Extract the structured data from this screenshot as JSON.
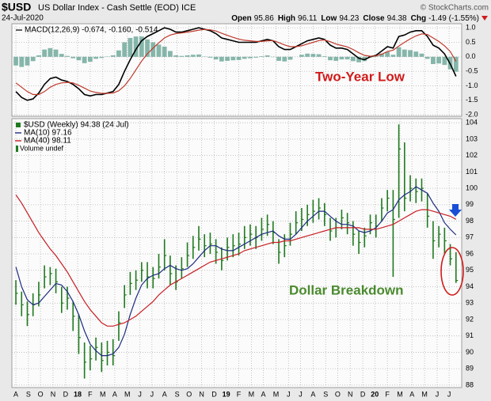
{
  "header": {
    "symbol": "$USD",
    "name": "US Dollar Index - Cash Settle (EOD) ICE",
    "source": "© StockCharts.com",
    "date": "24-Jul-2020",
    "quote": [
      [
        "Open",
        "95.86"
      ],
      [
        "High",
        "96.11"
      ],
      [
        "Low",
        "94.23"
      ],
      [
        "Close",
        "94.38"
      ],
      [
        "Chg",
        "-1.49 (-1.55%)"
      ]
    ]
  },
  "chart_data": [
    {
      "type": "macd",
      "legend": "MACD(12,26,9) -0.674, -0.160, -0.514",
      "annotation": "Two-Year Low",
      "annotation_color": "#d11a1a",
      "xlim": [
        -0.7,
        78
      ],
      "ylim": [
        -2.05,
        1.14
      ],
      "yticks": [
        {
          "value": 1,
          "label": "1.0"
        },
        0.5,
        {
          "value": 0,
          "label": "0.0"
        },
        -0.5,
        {
          "value": -1,
          "label": "-1.0"
        },
        -1.5,
        {
          "value": -2,
          "label": "-2.0"
        }
      ],
      "grid": true,
      "series": [
        {
          "type": "bar",
          "color": "#5f9f8f",
          "values": [
            -0.3,
            -0.35,
            -0.3,
            -0.15,
            0.05,
            0.25,
            0.3,
            0.25,
            0.1,
            0.03,
            -0.05,
            -0.12,
            -0.22,
            -0.17,
            -0.07,
            -0.04,
            0.01,
            0.05,
            0.22,
            0.5,
            0.65,
            0.7,
            0.7,
            0.6,
            0.5,
            0.42,
            0.35,
            0.2,
            0.05,
            0.03,
            0.05,
            0.07,
            0.08,
            0.01,
            -0.03,
            -0.09,
            -0.16,
            -0.14,
            -0.12,
            -0.11,
            -0.07,
            -0.05,
            -0.03,
            0.02,
            0.05,
            -0.01,
            -0.14,
            -0.16,
            -0.1,
            0.0,
            0.07,
            0.11,
            0.1,
            0.09,
            0.02,
            -0.12,
            -0.14,
            -0.09,
            -0.09,
            -0.15,
            -0.19,
            -0.15,
            -0.02,
            0.02,
            0.11,
            0.17,
            0.07,
            0.33,
            0.25,
            0.23,
            0.18,
            0.11,
            -0.07,
            -0.25,
            -0.23,
            -0.28,
            -0.43,
            -0.514
          ]
        },
        {
          "type": "line",
          "color": "#000000",
          "values": [
            -1.2,
            -1.4,
            -1.5,
            -1.45,
            -1.25,
            -0.95,
            -0.75,
            -0.7,
            -0.8,
            -0.85,
            -0.95,
            -1.1,
            -1.3,
            -1.35,
            -1.3,
            -1.3,
            -1.25,
            -1.2,
            -0.95,
            -0.5,
            -0.1,
            0.25,
            0.55,
            0.7,
            0.8,
            0.9,
            1.0,
            0.95,
            0.85,
            0.85,
            0.9,
            0.95,
            1.0,
            0.95,
            0.9,
            0.8,
            0.65,
            0.6,
            0.55,
            0.5,
            0.5,
            0.5,
            0.5,
            0.55,
            0.6,
            0.55,
            0.35,
            0.25,
            0.25,
            0.35,
            0.45,
            0.55,
            0.6,
            0.65,
            0.6,
            0.4,
            0.3,
            0.3,
            0.25,
            0.1,
            -0.05,
            -0.1,
            0.0,
            0.05,
            0.2,
            0.35,
            0.3,
            0.7,
            0.75,
            0.85,
            0.9,
            0.9,
            0.7,
            0.4,
            0.3,
            0.1,
            -0.25,
            -0.674
          ]
        },
        {
          "type": "line",
          "color": "#c0392b",
          "values": [
            -0.9,
            -1.05,
            -1.2,
            -1.3,
            -1.3,
            -1.2,
            -1.05,
            -0.95,
            -0.9,
            -0.88,
            -0.9,
            -0.98,
            -1.08,
            -1.18,
            -1.23,
            -1.26,
            -1.26,
            -1.25,
            -1.17,
            -1.0,
            -0.75,
            -0.45,
            -0.15,
            0.1,
            0.3,
            0.48,
            0.65,
            0.75,
            0.8,
            0.82,
            0.85,
            0.88,
            0.92,
            0.94,
            0.93,
            0.89,
            0.81,
            0.74,
            0.67,
            0.61,
            0.57,
            0.55,
            0.53,
            0.53,
            0.55,
            0.56,
            0.49,
            0.41,
            0.35,
            0.35,
            0.38,
            0.44,
            0.5,
            0.56,
            0.58,
            0.52,
            0.44,
            0.39,
            0.34,
            0.25,
            0.14,
            0.05,
            0.02,
            0.03,
            0.09,
            0.18,
            0.23,
            0.37,
            0.5,
            0.62,
            0.72,
            0.79,
            0.77,
            0.65,
            0.53,
            0.38,
            0.18,
            -0.16
          ]
        }
      ]
    },
    {
      "type": "ohlc",
      "annotation": "Dollar Breakdown",
      "annotation_color": "#4a8a2e",
      "legend_extra": "Volume undef",
      "xlim": [
        -0.7,
        78
      ],
      "ylim": [
        87.85,
        104.25
      ],
      "yticks": [
        88,
        89,
        90,
        91,
        92,
        93,
        94,
        95,
        96,
        97,
        98,
        99,
        100,
        101,
        102,
        103,
        104
      ],
      "xticks": [
        {
          "value": 0,
          "label": "A"
        },
        {
          "value": 2.2,
          "label": "S"
        },
        {
          "value": 4.3,
          "label": "O"
        },
        {
          "value": 6.5,
          "label": "N"
        },
        {
          "value": 8.7,
          "label": "D"
        },
        {
          "value": 10.8,
          "label": "18"
        },
        {
          "value": 13,
          "label": "F"
        },
        {
          "value": 15.2,
          "label": "M"
        },
        {
          "value": 17.3,
          "label": "A"
        },
        {
          "value": 19.5,
          "label": "M"
        },
        {
          "value": 21.7,
          "label": "J"
        },
        {
          "value": 23.8,
          "label": "J"
        },
        {
          "value": 26,
          "label": "A"
        },
        {
          "value": 28.2,
          "label": "S"
        },
        {
          "value": 30.3,
          "label": "O"
        },
        {
          "value": 32.5,
          "label": "N"
        },
        {
          "value": 34.7,
          "label": "D"
        },
        {
          "value": 36.8,
          "label": "19"
        },
        {
          "value": 39,
          "label": "F"
        },
        {
          "value": 41.2,
          "label": "M"
        },
        {
          "value": 43.3,
          "label": "A"
        },
        {
          "value": 45.5,
          "label": "M"
        },
        {
          "value": 47.7,
          "label": "J"
        },
        {
          "value": 49.8,
          "label": "J"
        },
        {
          "value": 52,
          "label": "A"
        },
        {
          "value": 54.2,
          "label": "S"
        },
        {
          "value": 56.3,
          "label": "O"
        },
        {
          "value": 58.5,
          "label": "N"
        },
        {
          "value": 60.7,
          "label": "D"
        },
        {
          "value": 62.8,
          "label": "20"
        },
        {
          "value": 65,
          "label": "F"
        },
        {
          "value": 67.2,
          "label": "M"
        },
        {
          "value": 69.3,
          "label": "A"
        },
        {
          "value": 71.5,
          "label": "M"
        },
        {
          "value": 73.7,
          "label": "J"
        },
        {
          "value": 75.8,
          "label": "J"
        }
      ],
      "grid": true,
      "series": [
        {
          "type": "ohlc",
          "name": "$USD (Weekly) 94.38 (24 Jul)",
          "color": "#1f7a1f",
          "high": [
            94.4,
            93.7,
            93.1,
            93.6,
            94.3,
            95.3,
            95.2,
            95.1,
            94.0,
            94.0,
            93.1,
            92.3,
            90.6,
            90.4,
            90.9,
            90.6,
            90.7,
            90.8,
            92.5,
            94.1,
            94.9,
            95.0,
            95.5,
            95.5,
            95.2,
            96.0,
            96.9,
            95.9,
            95.3,
            95.8,
            96.7,
            97.1,
            97.7,
            97.2,
            97.3,
            96.9,
            96.4,
            97.0,
            97.2,
            97.3,
            97.7,
            97.8,
            97.7,
            98.2,
            98.4,
            98.0,
            96.9,
            97.2,
            97.9,
            98.6,
            98.8,
            99.0,
            99.3,
            99.4,
            99.1,
            98.2,
            98.2,
            98.7,
            98.5,
            98.0,
            97.4,
            97.6,
            98.4,
            98.4,
            99.4,
            99.9,
            99.9,
            103.9,
            102.8,
            100.8,
            100.6,
            100.6,
            99.7,
            98.0,
            97.7,
            97.6,
            96.6,
            96.11
          ],
          "low": [
            92.9,
            92.2,
            91.6,
            92.2,
            92.8,
            93.9,
            94.1,
            93.6,
            92.4,
            92.6,
            91.3,
            89.9,
            88.4,
            88.9,
            89.5,
            88.8,
            89.2,
            89.2,
            90.7,
            92.7,
            93.5,
            93.8,
            94.3,
            93.9,
            93.9,
            94.5,
            95.0,
            94.1,
            93.8,
            94.5,
            95.2,
            95.7,
            96.2,
            95.8,
            96.0,
            95.4,
            95.0,
            95.6,
            95.8,
            95.9,
            96.3,
            96.5,
            96.3,
            96.8,
            97.1,
            96.6,
            95.4,
            95.8,
            96.5,
            97.2,
            97.4,
            97.7,
            97.9,
            98.1,
            97.7,
            96.8,
            97.0,
            97.5,
            97.2,
            96.5,
            96.0,
            96.4,
            97.2,
            97.0,
            98.0,
            98.6,
            94.6,
            98.2,
            98.6,
            99.2,
            99.1,
            99.2,
            97.6,
            95.7,
            96.4,
            96.0,
            95.3,
            94.23
          ],
          "close": [
            93.6,
            92.9,
            92.3,
            92.9,
            93.5,
            94.6,
            94.8,
            94.3,
            93.0,
            93.3,
            92.2,
            90.9,
            89.4,
            89.6,
            90.3,
            89.5,
            90.0,
            89.8,
            91.8,
            93.5,
            94.2,
            94.4,
            95.0,
            94.6,
            94.5,
            95.2,
            95.9,
            94.8,
            94.3,
            95.1,
            95.9,
            96.4,
            96.9,
            96.5,
            96.6,
            96.1,
            95.6,
            96.4,
            96.5,
            96.6,
            97.0,
            97.2,
            97.0,
            97.5,
            97.8,
            97.3,
            96.1,
            96.5,
            97.2,
            97.9,
            98.1,
            98.4,
            98.6,
            98.8,
            98.4,
            97.4,
            97.6,
            98.2,
            97.9,
            97.2,
            96.7,
            97.1,
            97.9,
            97.7,
            98.8,
            99.4,
            98.1,
            102.4,
            99.4,
            100.0,
            99.8,
            100.0,
            98.3,
            96.8,
            97.2,
            96.8,
            95.7,
            94.38
          ]
        },
        {
          "type": "line",
          "name": "MA(10) 97.16",
          "color": "#1c2b80",
          "values": [
            95.2,
            94.0,
            93.2,
            92.9,
            93.0,
            93.4,
            93.8,
            94.2,
            94.1,
            93.7,
            93.1,
            92.3,
            91.3,
            90.5,
            90.1,
            89.8,
            89.8,
            89.9,
            90.3,
            91.1,
            92.3,
            93.3,
            94.1,
            94.5,
            94.7,
            94.8,
            95.1,
            95.3,
            95.1,
            95.0,
            95.1,
            95.4,
            95.8,
            96.2,
            96.5,
            96.5,
            96.3,
            96.2,
            96.2,
            96.4,
            96.6,
            96.8,
            97.0,
            97.2,
            97.3,
            97.4,
            97.1,
            96.9,
            96.9,
            97.2,
            97.6,
            98.0,
            98.3,
            98.6,
            98.6,
            98.3,
            98.0,
            97.8,
            97.8,
            97.7,
            97.4,
            97.3,
            97.4,
            97.6,
            98.0,
            98.5,
            98.7,
            99.3,
            99.6,
            99.8,
            100.1,
            99.9,
            99.7,
            99.1,
            98.6,
            97.9,
            97.5,
            97.16
          ]
        },
        {
          "type": "line",
          "name": "MA(40) 98.11",
          "color": "#c81e24",
          "values": [
            99.6,
            99.1,
            98.5,
            97.9,
            97.3,
            96.8,
            96.3,
            95.9,
            95.4,
            94.9,
            94.3,
            93.7,
            93.1,
            92.6,
            92.2,
            91.8,
            91.6,
            91.6,
            91.7,
            91.8,
            92.0,
            92.2,
            92.5,
            92.8,
            93.1,
            93.5,
            93.8,
            94.1,
            94.3,
            94.5,
            94.7,
            94.9,
            95.1,
            95.3,
            95.5,
            95.6,
            95.7,
            95.8,
            95.9,
            96.0,
            96.2,
            96.3,
            96.4,
            96.5,
            96.6,
            96.7,
            96.7,
            96.8,
            96.8,
            96.9,
            97.0,
            97.1,
            97.2,
            97.3,
            97.4,
            97.5,
            97.6,
            97.6,
            97.6,
            97.6,
            97.6,
            97.5,
            97.5,
            97.5,
            97.6,
            97.7,
            97.8,
            98.0,
            98.2,
            98.4,
            98.6,
            98.7,
            98.7,
            98.6,
            98.5,
            98.4,
            98.3,
            98.11
          ]
        }
      ]
    }
  ]
}
